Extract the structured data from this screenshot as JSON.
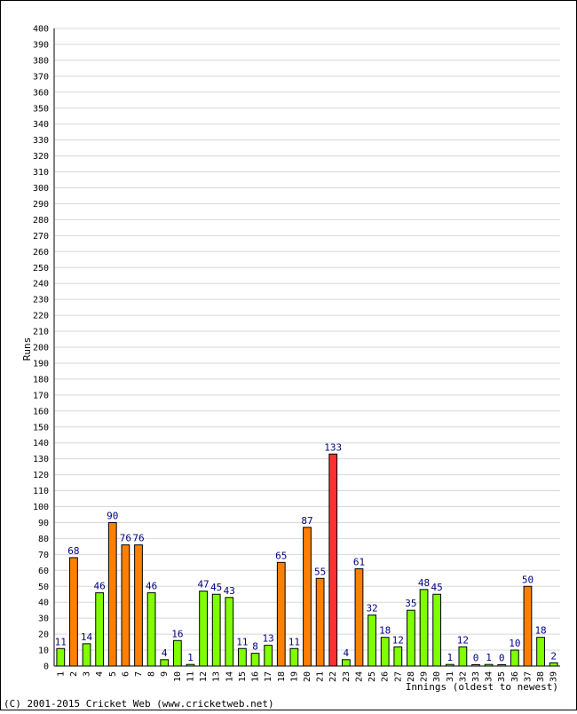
{
  "chart_data": {
    "type": "bar",
    "title": "",
    "xlabel": "Innings (oldest to newest)",
    "ylabel": "Runs",
    "ylim": [
      0,
      400
    ],
    "ytick_step": 10,
    "grid": true,
    "legend": "none",
    "categories": [
      "1",
      "2",
      "3",
      "4",
      "5",
      "6",
      "7",
      "8",
      "9",
      "10",
      "11",
      "12",
      "13",
      "14",
      "15",
      "16",
      "17",
      "18",
      "19",
      "20",
      "21",
      "22",
      "23",
      "24",
      "25",
      "26",
      "27",
      "28",
      "29",
      "30",
      "31",
      "32",
      "33",
      "34",
      "35",
      "36",
      "37",
      "38",
      "39"
    ],
    "values": [
      11,
      68,
      14,
      46,
      90,
      76,
      76,
      46,
      4,
      16,
      1,
      47,
      45,
      43,
      11,
      8,
      13,
      65,
      11,
      87,
      55,
      133,
      4,
      61,
      32,
      18,
      12,
      35,
      48,
      45,
      1,
      12,
      0,
      1,
      0,
      10,
      50,
      18,
      2
    ],
    "bar_colors": [
      "#80ff00",
      "#ff8000",
      "#80ff00",
      "#80ff00",
      "#ff8000",
      "#ff8000",
      "#ff8000",
      "#80ff00",
      "#80ff00",
      "#80ff00",
      "#80ff00",
      "#80ff00",
      "#80ff00",
      "#80ff00",
      "#80ff00",
      "#80ff00",
      "#80ff00",
      "#ff8000",
      "#80ff00",
      "#ff8000",
      "#ff8000",
      "#ff3030",
      "#80ff00",
      "#ff8000",
      "#80ff00",
      "#80ff00",
      "#80ff00",
      "#80ff00",
      "#80ff00",
      "#80ff00",
      "#80ff00",
      "#80ff00",
      "#80ff00",
      "#80ff00",
      "#80ff00",
      "#80ff00",
      "#ff8000",
      "#80ff00",
      "#80ff00"
    ],
    "colors": {
      "grid": "#d8d8d8",
      "label": "#000080",
      "axis": "#000000"
    }
  },
  "footer": {
    "copyright": "(C) 2001-2015 Cricket Web (www.cricketweb.net)"
  }
}
